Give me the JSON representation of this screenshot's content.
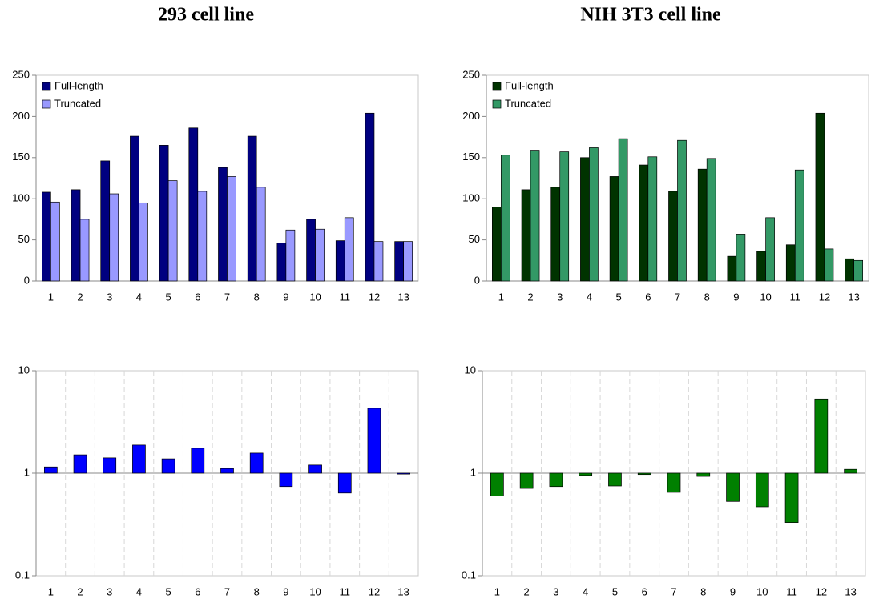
{
  "chart_data": [
    {
      "type": "grouped-bar",
      "title": "293 cell line",
      "categories": [
        "1",
        "2",
        "3",
        "4",
        "5",
        "6",
        "7",
        "8",
        "9",
        "10",
        "11",
        "12",
        "13"
      ],
      "series": [
        {
          "name": "Full-length",
          "color": "#000080",
          "values": [
            108,
            111,
            146,
            176,
            165,
            186,
            138,
            176,
            46,
            75,
            49,
            204,
            48
          ]
        },
        {
          "name": "Truncated",
          "color": "#9999ff",
          "values": [
            96,
            75,
            106,
            95,
            122,
            109,
            127,
            114,
            62,
            63,
            77,
            48,
            48
          ]
        }
      ],
      "ylim": [
        0,
        250
      ],
      "yticks": [
        0,
        50,
        100,
        150,
        200,
        250
      ],
      "legend": "upper left"
    },
    {
      "type": "grouped-bar",
      "title": "NIH 3T3 cell line",
      "categories": [
        "1",
        "2",
        "3",
        "4",
        "5",
        "6",
        "7",
        "8",
        "9",
        "10",
        "11",
        "12",
        "13"
      ],
      "series": [
        {
          "name": "Full-length",
          "color": "#003300",
          "values": [
            90,
            111,
            114,
            150,
            127,
            141,
            109,
            136,
            30,
            36,
            44,
            204,
            27
          ]
        },
        {
          "name": "Truncated",
          "color": "#339966",
          "values": [
            153,
            159,
            157,
            162,
            173,
            151,
            171,
            149,
            57,
            77,
            135,
            39,
            25
          ]
        }
      ],
      "ylim": [
        0,
        250
      ],
      "yticks": [
        0,
        50,
        100,
        150,
        200,
        250
      ],
      "legend": "upper left"
    },
    {
      "type": "bar",
      "categories": [
        "1",
        "2",
        "3",
        "4",
        "5",
        "6",
        "7",
        "8",
        "9",
        "10",
        "11",
        "12",
        "13"
      ],
      "values": [
        1.15,
        1.51,
        1.41,
        1.88,
        1.38,
        1.75,
        1.11,
        1.57,
        0.74,
        1.2,
        0.64,
        4.3,
        0.98
      ],
      "color": "#0000ff",
      "ylim": [
        0.1,
        10
      ],
      "yticks": [
        0.1,
        1,
        10
      ],
      "log": true,
      "grid": true
    },
    {
      "type": "bar",
      "categories": [
        "1",
        "2",
        "3",
        "4",
        "5",
        "6",
        "7",
        "8",
        "9",
        "10",
        "11",
        "12",
        "13"
      ],
      "values": [
        0.6,
        0.71,
        0.74,
        0.95,
        0.75,
        0.97,
        0.65,
        0.93,
        0.53,
        0.47,
        0.33,
        5.3,
        1.09
      ],
      "color": "#008000",
      "ylim": [
        0.1,
        10
      ],
      "yticks": [
        0.1,
        1,
        10
      ],
      "log": true,
      "grid": true
    }
  ]
}
